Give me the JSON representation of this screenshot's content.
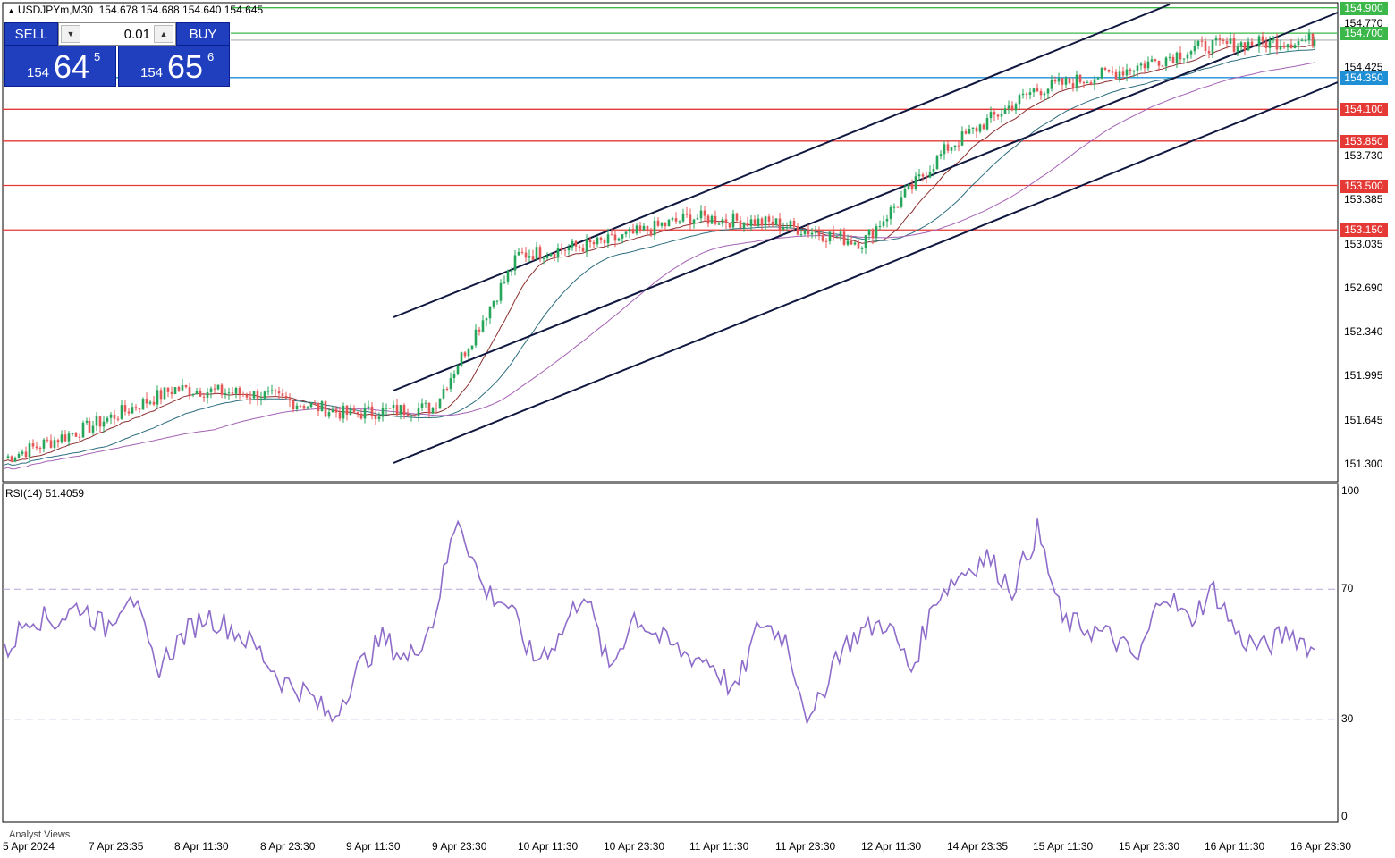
{
  "header": {
    "symbol_label": "USDJPYm,M30",
    "ohlc": "154.678 154.688 154.640 154.645"
  },
  "trade_panel": {
    "sell_label": "SELL",
    "buy_label": "BUY",
    "lot": "0.01",
    "sell_price": {
      "small": "154",
      "big": "64",
      "sup": "5"
    },
    "buy_price": {
      "small": "154",
      "big": "65",
      "sup": "6"
    }
  },
  "price_axis": {
    "ticks": [
      "154.770",
      "154.425",
      "153.730",
      "153.385",
      "153.035",
      "152.690",
      "152.340",
      "151.995",
      "151.645",
      "151.300"
    ]
  },
  "levels": [
    {
      "label": "154.900",
      "value": 154.9,
      "color": "#3cb84a"
    },
    {
      "label": "154.700",
      "value": 154.7,
      "color": "#3cb84a"
    },
    {
      "label": "154.350",
      "value": 154.35,
      "color": "#1f8fd6"
    },
    {
      "label": "154.100",
      "value": 154.1,
      "color": "#e53935"
    },
    {
      "label": "153.850",
      "value": 153.85,
      "color": "#e53935"
    },
    {
      "label": "153.500",
      "value": 153.5,
      "color": "#e53935"
    },
    {
      "label": "153.150",
      "value": 153.15,
      "color": "#e53935"
    }
  ],
  "rsi": {
    "label": "RSI(14) 51.4059",
    "axis_ticks": [
      "100",
      "70",
      "30",
      "0"
    ],
    "level_high": 70,
    "level_low": 30
  },
  "time_axis": {
    "labels": [
      "5 Apr 2024",
      "7 Apr 23:35",
      "8 Apr 11:30",
      "8 Apr 23:30",
      "9 Apr 11:30",
      "9 Apr 23:30",
      "10 Apr 11:30",
      "10 Apr 23:30",
      "11 Apr 11:30",
      "11 Apr 23:30",
      "12 Apr 11:30",
      "14 Apr 23:35",
      "15 Apr 11:30",
      "15 Apr 23:30",
      "16 Apr 11:30",
      "16 Apr 23:30"
    ]
  },
  "footer": {
    "analyst_label": "Analyst Views"
  },
  "chart_data": {
    "type": "candlestick",
    "symbol": "USDJPYm",
    "timeframe": "M30",
    "ylim": [
      151.2,
      155.0
    ],
    "close_path": [
      [
        "5 Apr 2024",
        151.35
      ],
      [
        "7 Apr 23:35",
        151.6
      ],
      [
        "8 Apr 11:30",
        151.9
      ],
      [
        "8 Apr 23:30",
        151.85
      ],
      [
        "9 Apr 11:30",
        151.7
      ],
      [
        "9 Apr 23:30",
        151.75
      ],
      [
        "10 Apr 11:30",
        152.95
      ],
      [
        "10 Apr 23:30",
        153.05
      ],
      [
        "11 Apr 11:30",
        153.25
      ],
      [
        "11 Apr 23:30",
        153.2
      ],
      [
        "12 Apr 11:30",
        153.05
      ],
      [
        "14 Apr 23:35",
        153.8
      ],
      [
        "15 Apr 11:30",
        154.25
      ],
      [
        "15 Apr 23:30",
        154.4
      ],
      [
        "16 Apr 11:30",
        154.6
      ],
      [
        "16 Apr 23:30",
        154.645
      ]
    ],
    "rsi_series": [
      50,
      62,
      60,
      65,
      58,
      70,
      45,
      55,
      62,
      58,
      52,
      42,
      38,
      30,
      45,
      55,
      48,
      60,
      93,
      70,
      65,
      48,
      55,
      70,
      45,
      62,
      55,
      50,
      48,
      38,
      60,
      55,
      28,
      50,
      57,
      60,
      45,
      68,
      75,
      80,
      70,
      88,
      60,
      58,
      55,
      48,
      70,
      60,
      70,
      55,
      52,
      57,
      51.4
    ],
    "colors": {
      "bull": "#26a65b",
      "bear": "#e55656",
      "ma_fast": "#8b2f2f",
      "ma_mid": "#2c6e7f",
      "ma_slow": "#a562b5",
      "channel": "#101840",
      "rsi": "#8e6cc9"
    }
  }
}
